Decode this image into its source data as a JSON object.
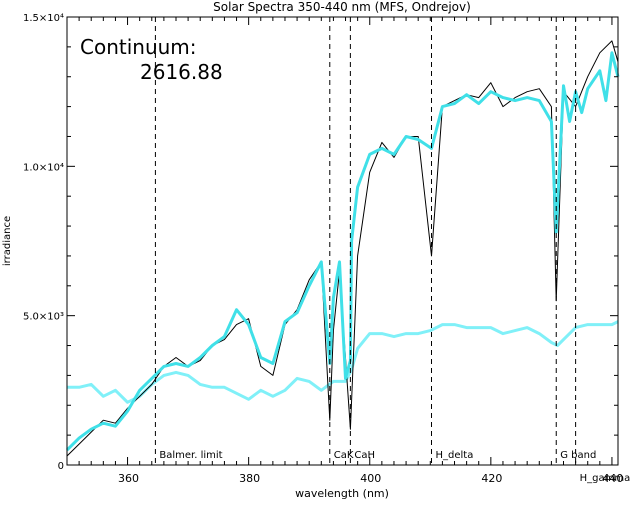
{
  "chart_data": {
    "type": "line",
    "title": "Solar Spectra 350-440 nm (MFS, Ondrejov)",
    "xlabel": "wavelength (nm)",
    "ylabel": "irradiance",
    "xlim": [
      350,
      441
    ],
    "ylim": [
      0,
      15000
    ],
    "x_ticks": [
      {
        "value": 360,
        "label": "360"
      },
      {
        "value": 380,
        "label": "380"
      },
      {
        "value": 400,
        "label": "400"
      },
      {
        "value": 420,
        "label": "420"
      },
      {
        "value": 440,
        "label": "440"
      }
    ],
    "y_ticks": [
      {
        "value": 0,
        "label": "0"
      },
      {
        "value": 5000,
        "label": "5.0×10³"
      },
      {
        "value": 10000,
        "label": "1.0×10⁴"
      },
      {
        "value": 15000,
        "label": "1.5×10⁴"
      }
    ],
    "continuum_label": "Continuum:",
    "continuum_value": "2616.88",
    "reference_lines": [
      {
        "x": 364.6,
        "label": "Balmer. limit"
      },
      {
        "x": 393.4,
        "label": "CaK"
      },
      {
        "x": 396.8,
        "label": "CaH"
      },
      {
        "x": 410.2,
        "label": "H_delta"
      },
      {
        "x": 430.8,
        "label": "G band"
      },
      {
        "x": 434.0,
        "label": "H_gamma"
      }
    ],
    "series": [
      {
        "color": "#000000",
        "x": [
          350,
          352,
          354,
          356,
          358,
          360,
          362,
          364,
          366,
          368,
          370,
          372,
          374,
          376,
          378,
          380,
          382,
          384,
          386,
          388,
          390,
          392,
          393.4,
          394,
          395,
          396.8,
          398,
          400,
          402,
          404,
          406,
          408,
          410.2,
          412,
          414,
          416,
          418,
          420,
          422,
          424,
          426,
          428,
          430,
          430.8,
          432,
          434,
          436,
          438,
          440,
          441
        ],
        "y": [
          300,
          700,
          1100,
          1500,
          1400,
          1900,
          2300,
          2700,
          3300,
          3600,
          3300,
          3500,
          4000,
          4200,
          4700,
          4900,
          3300,
          3000,
          4700,
          5200,
          6200,
          6800,
          1500,
          4500,
          6500,
          1200,
          7000,
          9800,
          10800,
          10300,
          11000,
          11000,
          7000,
          12000,
          12200,
          12400,
          12300,
          12800,
          12000,
          12300,
          12500,
          12600,
          12000,
          5500,
          12500,
          12000,
          13000,
          13800,
          14200,
          13500
        ]
      },
      {
        "color": "#40e0e8",
        "x": [
          350,
          352,
          354,
          356,
          358,
          360,
          362,
          364,
          366,
          368,
          370,
          372,
          374,
          376,
          378,
          380,
          382,
          384,
          386,
          388,
          390,
          392,
          393.4,
          394,
          395,
          396,
          396.8,
          397,
          398,
          400,
          402,
          404,
          406,
          408,
          410.2,
          412,
          414,
          416,
          418,
          420,
          422,
          424,
          426,
          428,
          430,
          430.8,
          432,
          433,
          434,
          435,
          436,
          438,
          439,
          440,
          441
        ],
        "y": [
          500,
          900,
          1200,
          1400,
          1300,
          1800,
          2500,
          2900,
          3300,
          3400,
          3300,
          3600,
          4000,
          4300,
          5200,
          4700,
          3600,
          3400,
          4800,
          5100,
          6000,
          6800,
          3400,
          5600,
          6800,
          2900,
          3500,
          7500,
          9300,
          10400,
          10600,
          10400,
          11000,
          10900,
          10600,
          12000,
          12100,
          12400,
          12100,
          12500,
          12300,
          12200,
          12300,
          12200,
          11500,
          7800,
          12700,
          11500,
          12500,
          11800,
          12600,
          13200,
          12200,
          13800,
          13000
        ]
      },
      {
        "color": "#80f0f8",
        "x": [
          350,
          352,
          354,
          356,
          358,
          360,
          362,
          364,
          366,
          368,
          370,
          372,
          374,
          376,
          378,
          380,
          382,
          384,
          386,
          388,
          390,
          392,
          394,
          396,
          397,
          398,
          400,
          402,
          404,
          406,
          408,
          410,
          412,
          414,
          416,
          418,
          420,
          422,
          424,
          426,
          428,
          430,
          431,
          432,
          434,
          436,
          438,
          440,
          441
        ],
        "y": [
          2600,
          2600,
          2700,
          2300,
          2500,
          2100,
          2300,
          2700,
          3000,
          3100,
          3000,
          2700,
          2600,
          2600,
          2400,
          2200,
          2500,
          2300,
          2500,
          2900,
          2800,
          2500,
          2800,
          2800,
          3200,
          3900,
          4400,
          4400,
          4300,
          4400,
          4400,
          4500,
          4700,
          4700,
          4600,
          4600,
          4600,
          4400,
          4500,
          4600,
          4400,
          4100,
          4000,
          4200,
          4600,
          4700,
          4700,
          4700,
          4800
        ]
      }
    ]
  }
}
